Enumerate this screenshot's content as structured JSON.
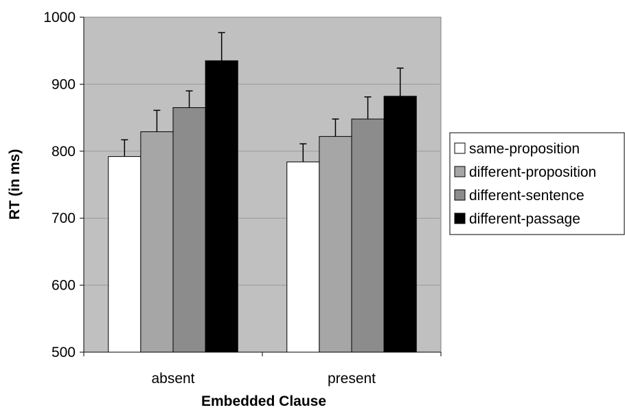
{
  "chart_data": {
    "type": "bar",
    "categories": [
      "absent",
      "present"
    ],
    "series": [
      {
        "name": "same-proposition",
        "values": [
          792,
          784
        ],
        "errors": [
          25,
          27
        ],
        "color": "#ffffff"
      },
      {
        "name": "different-proposition",
        "values": [
          829,
          822
        ],
        "errors": [
          32,
          26
        ],
        "color": "#a6a6a6"
      },
      {
        "name": "different-sentence",
        "values": [
          865,
          848
        ],
        "errors": [
          25,
          33
        ],
        "color": "#8c8c8c"
      },
      {
        "name": "different-passage",
        "values": [
          935,
          882
        ],
        "errors": [
          42,
          42
        ],
        "color": "#000000"
      }
    ],
    "xlabel": "Embedded Clause",
    "ylabel": "RT (in ms)",
    "ylim": [
      500,
      1000
    ],
    "yticks": [
      500,
      600,
      700,
      800,
      900,
      1000
    ],
    "grid": true,
    "plot_background": "#c0c0c0",
    "legend_position": "right"
  }
}
